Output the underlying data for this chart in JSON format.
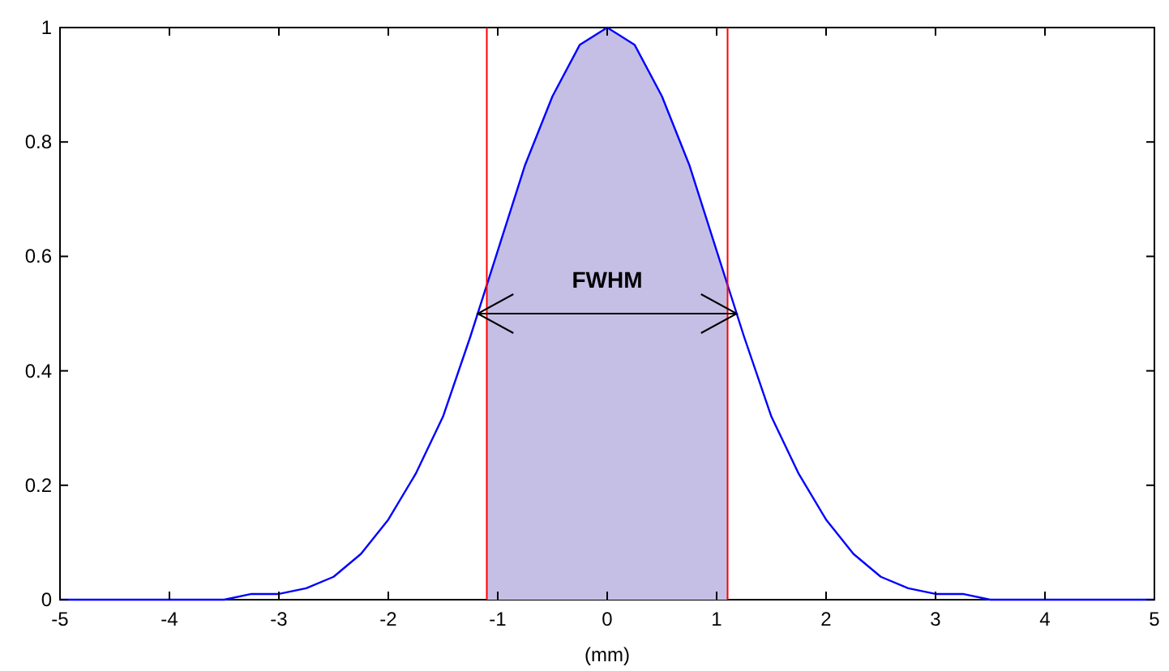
{
  "chart_data": {
    "type": "line",
    "xlabel": "(mm)",
    "xlim": [
      -5,
      5
    ],
    "ylim": [
      0,
      1
    ],
    "xticks": [
      -5,
      -4,
      -3,
      -2,
      -1,
      0,
      1,
      2,
      3,
      4,
      5
    ],
    "yticks": [
      0,
      0.2,
      0.4,
      0.6,
      0.8,
      1
    ],
    "grid": false,
    "marker": "none",
    "line_style": "solid",
    "series": [
      {
        "type": "area",
        "color": "#c5bfe6",
        "x": [
          -1.1,
          -1,
          -0.75,
          -0.5,
          -0.25,
          0,
          0.25,
          0.5,
          0.75,
          1,
          1.1
        ],
        "values": [
          0.55,
          0.61,
          0.76,
          0.88,
          0.97,
          1,
          0.97,
          0.88,
          0.76,
          0.61,
          0.55
        ]
      },
      {
        "color": "#0000ff",
        "x": [
          -5,
          -4.5,
          -4,
          -3.75,
          -3.5,
          -3.25,
          -3,
          -2.75,
          -2.5,
          -2.25,
          -2,
          -1.75,
          -1.5,
          -1.25,
          -1,
          -0.75,
          -0.5,
          -0.25,
          0,
          0.25,
          0.5,
          0.75,
          1,
          1.25,
          1.5,
          1.75,
          2,
          2.25,
          2.5,
          2.75,
          3,
          3.25,
          3.5,
          3.75,
          4,
          4.5,
          5
        ],
        "values": [
          0,
          0,
          0,
          0,
          0,
          0.01,
          0.01,
          0.02,
          0.04,
          0.08,
          0.14,
          0.22,
          0.32,
          0.46,
          0.61,
          0.76,
          0.88,
          0.97,
          1,
          0.97,
          0.88,
          0.76,
          0.61,
          0.46,
          0.32,
          0.22,
          0.14,
          0.08,
          0.04,
          0.02,
          0.01,
          0.01,
          0,
          0,
          0,
          0,
          0
        ]
      }
    ],
    "ref_lines": [
      {
        "axis": "x",
        "value": -1.1,
        "color": "#ff0000"
      },
      {
        "axis": "x",
        "value": 1.1,
        "color": "#ff0000"
      }
    ],
    "annotations": [
      "FWHM"
    ]
  }
}
